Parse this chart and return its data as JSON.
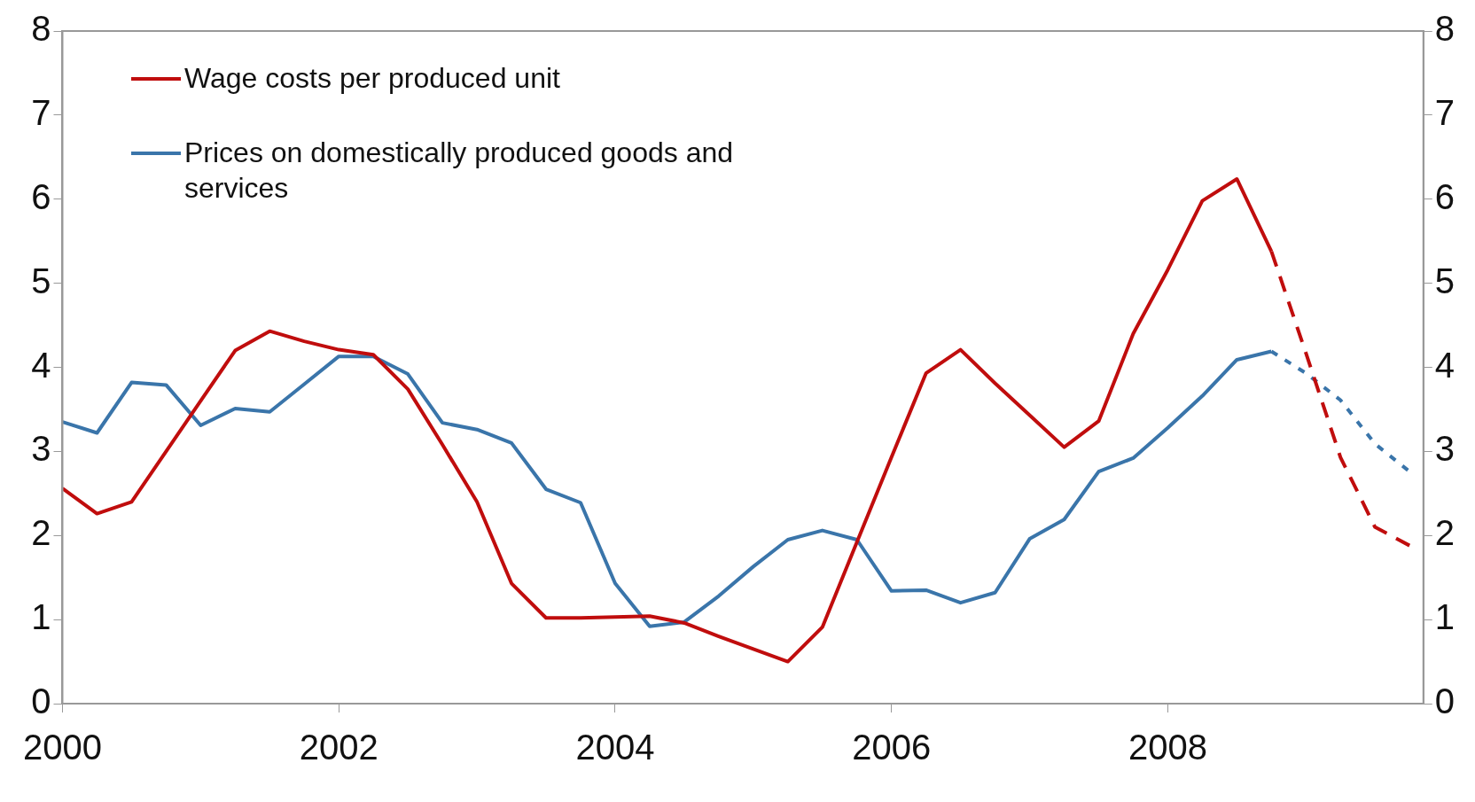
{
  "chart_data": {
    "type": "line",
    "x": [
      2000,
      2000.25,
      2000.5,
      2000.75,
      2001,
      2001.25,
      2001.5,
      2001.75,
      2002,
      2002.25,
      2002.5,
      2002.75,
      2003,
      2003.25,
      2003.5,
      2003.75,
      2004,
      2004.25,
      2004.5,
      2004.75,
      2005,
      2005.25,
      2005.5,
      2005.75,
      2006,
      2006.25,
      2006.5,
      2006.75,
      2007,
      2007.25,
      2007.5,
      2007.75,
      2008,
      2008.25,
      2008.5,
      2008.75
    ],
    "series": [
      {
        "name": "Wage costs per produced unit",
        "color": "#c00d0d",
        "values": [
          2.56,
          2.26,
          2.4,
          3.0,
          3.6,
          4.2,
          4.43,
          4.31,
          4.21,
          4.15,
          3.74,
          3.08,
          2.4,
          1.43,
          1.02,
          1.02,
          1.03,
          1.04,
          0.96,
          0.8,
          0.65,
          0.5,
          0.91,
          1.92,
          2.93,
          3.93,
          4.21,
          3.81,
          3.43,
          3.05,
          3.36,
          4.4,
          5.16,
          5.98,
          6.24,
          5.38
        ]
      },
      {
        "name": "Prices on domestically produced goods and services",
        "color": "#3a75aa",
        "values": [
          3.35,
          3.22,
          3.82,
          3.79,
          3.31,
          3.51,
          3.47,
          3.8,
          4.13,
          4.13,
          3.92,
          3.34,
          3.26,
          3.1,
          2.55,
          2.39,
          1.43,
          0.92,
          0.97,
          1.28,
          1.63,
          1.95,
          2.06,
          1.95,
          1.34,
          1.35,
          1.2,
          1.32,
          1.96,
          2.19,
          2.76,
          2.92,
          3.28,
          3.66,
          4.09,
          4.19
        ]
      },
      {
        "color": "#c00d0d",
        "line_style": "dashed",
        "x": [
          2008.75,
          2009,
          2009.25,
          2009.5,
          2009.75
        ],
        "values": [
          5.38,
          4.17,
          2.93,
          2.1,
          1.88
        ]
      },
      {
        "color": "#3a75aa",
        "line_style": "dotted",
        "x": [
          2008.75,
          2009,
          2009.25,
          2009.5,
          2009.75
        ],
        "values": [
          4.19,
          3.93,
          3.61,
          3.09,
          2.76
        ]
      }
    ],
    "xlim": [
      2000,
      2009.85
    ],
    "xticks": [
      2000,
      2002,
      2004,
      2006,
      2008
    ],
    "ylim": [
      0,
      8
    ],
    "yticks": [
      0,
      1,
      2,
      3,
      4,
      5,
      6,
      7,
      8
    ],
    "y2lim": [
      0,
      8
    ],
    "y2ticks": [
      0,
      1,
      2,
      3,
      4,
      5,
      6,
      7,
      8
    ],
    "legend": "top left",
    "marker": "none"
  }
}
